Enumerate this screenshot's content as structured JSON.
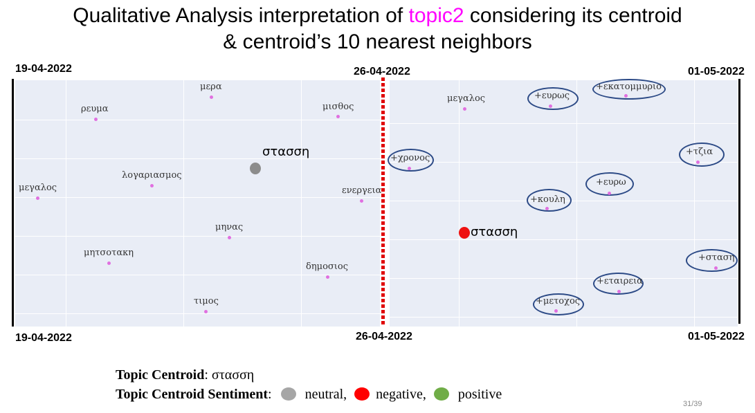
{
  "title": {
    "prefix": "Qualitative Analysis interpretation of ",
    "highlight": "topic2",
    "suffix": " considering its centroid",
    "line2": "& centroid’s 10 nearest neighbors"
  },
  "dates": {
    "left_top": "19-04-2022",
    "mid_top": "26-04-2022",
    "right_top": "01-05-2022",
    "left_bottom": "19-04-2022",
    "mid_bottom": "26-04-2022",
    "right_bottom": "01-05-2022"
  },
  "left_panel": {
    "centroid": "στασση",
    "words": [
      "μερα",
      "ρευμα",
      "μισθος",
      "λογαριασμος",
      "μεγαλος",
      "ενεργεια",
      "μηνας",
      "μητσοτακη",
      "δημοσιος",
      "τιμος"
    ]
  },
  "right_panel": {
    "centroid": "στασση",
    "words": [
      "μεγαλος",
      "+ευρως",
      "+εκατομμυριο",
      "+χρονος",
      "+τζια",
      "+ευρω",
      "+κουλη",
      "+σταση",
      "+εταιρεια",
      "+μετοχος"
    ]
  },
  "legend": {
    "centroid_label": "Topic Centroid",
    "centroid_value": ": στασση",
    "sentiment_label": "Topic Centroid Sentiment",
    "sentiment_sep": ":",
    "neutral": "neutral,",
    "negative": "negative,",
    "positive": "positive",
    "colors": {
      "neutral": "#a6a6a6",
      "negative": "#ff0000",
      "positive": "#70ad47"
    }
  },
  "page_number": "31/39"
}
